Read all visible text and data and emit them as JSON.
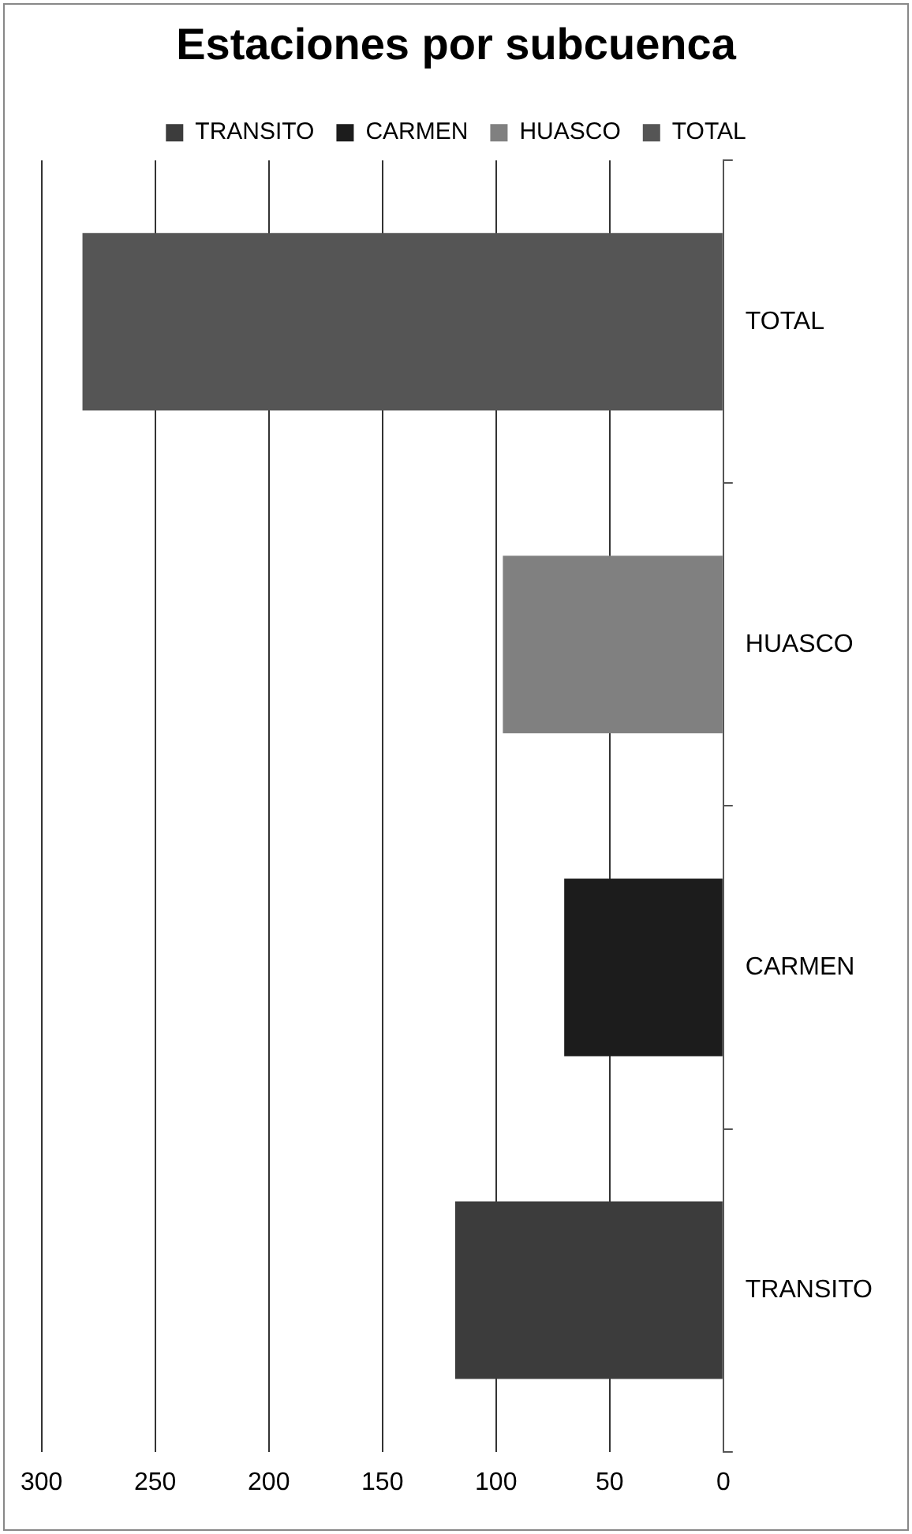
{
  "chart_data": {
    "type": "bar",
    "title": "Estaciones por subcuenca",
    "orientation": "horizontal",
    "categories": [
      "TOTAL",
      "HUASCO",
      "CARMEN",
      "TRANSITO"
    ],
    "series": [
      {
        "name": "TRANSITO",
        "color": "#3c3c3c",
        "values": [
          null,
          null,
          null,
          118
        ]
      },
      {
        "name": "CARMEN",
        "color": "#1c1c1c",
        "values": [
          null,
          null,
          70,
          null
        ]
      },
      {
        "name": "HUASCO",
        "color": "#808080",
        "values": [
          null,
          97,
          null,
          null
        ]
      },
      {
        "name": "TOTAL",
        "color": "#555555",
        "values": [
          282,
          null,
          null,
          null
        ]
      }
    ],
    "xlim": [
      300,
      0
    ],
    "xticks": [
      300,
      250,
      200,
      150,
      100,
      50,
      0
    ],
    "grid": "x",
    "legend": "top"
  }
}
